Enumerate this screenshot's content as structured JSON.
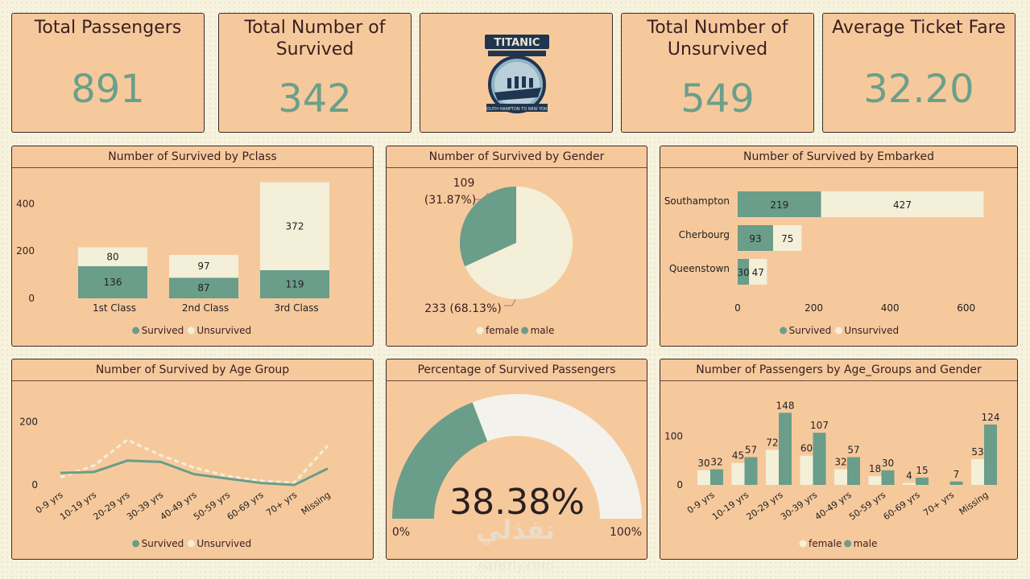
{
  "colors": {
    "survived": "#6a9d8a",
    "unsurvived": "#f4efd8",
    "female": "#f4efd8",
    "male": "#6a9d8a",
    "kpi_value": "#6aa08a",
    "card_bg": "#f6c99d"
  },
  "kpis": {
    "total_passengers": {
      "title": "Total Passengers",
      "value": "891"
    },
    "total_survived": {
      "title": "Total Number of Survived",
      "value": "342"
    },
    "total_unsurvived": {
      "title": "Total Number of Unsurvived",
      "value": "549"
    },
    "avg_fare": {
      "title": "Average Ticket Fare",
      "value": "32.20"
    }
  },
  "logo": {
    "name": "titanic-logo-icon",
    "text": "TITANIC",
    "subtitle": "SOUTH HAMPTON TO NEW YORK"
  },
  "watermark": {
    "text": "نفذلي",
    "sub": "nafezly.com"
  },
  "chart_data": [
    {
      "id": "pclass",
      "type": "bar",
      "stacked": true,
      "title": "Number of Survived by Pclass",
      "categories": [
        "1st Class",
        "2nd Class",
        "3rd Class"
      ],
      "series": [
        {
          "name": "Survived",
          "values": [
            136,
            87,
            119
          ]
        },
        {
          "name": "Unsurvived",
          "values": [
            80,
            97,
            372
          ]
        }
      ],
      "y_ticks": [
        "0",
        "200",
        "400"
      ],
      "ylim": [
        0,
        500
      ],
      "legend": "bottom"
    },
    {
      "id": "gender",
      "type": "pie",
      "title": "Number of Survived by Gender",
      "series": [
        {
          "name": "male",
          "value": 109,
          "label_value": "109",
          "label_pct": "(31.87%)"
        },
        {
          "name": "female",
          "value": 233,
          "label_value": "233 (68.13%)",
          "label_pct": ""
        }
      ],
      "legend": "bottom"
    },
    {
      "id": "embarked",
      "type": "bar",
      "orientation": "horizontal",
      "stacked": true,
      "title": "Number of Survived by Embarked",
      "categories": [
        "Southampton",
        "Cherbourg",
        "Queenstown"
      ],
      "series": [
        {
          "name": "Survived",
          "values": [
            219,
            93,
            30
          ]
        },
        {
          "name": "Unsurvived",
          "values": [
            427,
            75,
            47
          ]
        }
      ],
      "x_ticks": [
        "0",
        "200",
        "400",
        "600"
      ],
      "xlim": [
        0,
        700
      ],
      "legend": "bottom"
    },
    {
      "id": "agegroup",
      "type": "line",
      "title": "Number of Survived by Age Group",
      "categories": [
        "0-9 yrs",
        "10-19 yrs",
        "20-29 yrs",
        "30-39 yrs",
        "40-49 yrs",
        "50-59 yrs",
        "60-69 yrs",
        "70+ yrs",
        "Missing"
      ],
      "series": [
        {
          "name": "Survived",
          "values": [
            38,
            41,
            77,
            73,
            34,
            20,
            6,
            0,
            52
          ]
        },
        {
          "name": "Unsurvived",
          "values": [
            24,
            61,
            143,
            94,
            55,
            28,
            13,
            7,
            125
          ]
        }
      ],
      "y_ticks": [
        "0",
        "200"
      ],
      "ylim": [
        0,
        250
      ],
      "legend": "bottom"
    },
    {
      "id": "gauge",
      "type": "gauge",
      "title": "Percentage of Survived Passengers",
      "value": 38.38,
      "value_label": "38.38%",
      "min_label": "0%",
      "max_label": "100%"
    },
    {
      "id": "agegender",
      "type": "bar",
      "title": "Number of Passengers by Age_Groups and Gender",
      "categories": [
        "0-9 yrs",
        "10-19 yrs",
        "20-29 yrs",
        "30-39 yrs",
        "40-49 yrs",
        "50-59 yrs",
        "60-69 yrs",
        "70+ yrs",
        "Missing"
      ],
      "series": [
        {
          "name": "female",
          "values": [
            30,
            45,
            72,
            60,
            32,
            18,
            4,
            0,
            53
          ],
          "labels": [
            "30",
            "45",
            "72",
            "60",
            "32",
            "18",
            "4",
            "",
            "53"
          ]
        },
        {
          "name": "male",
          "values": [
            32,
            57,
            148,
            107,
            57,
            30,
            15,
            7,
            124
          ],
          "labels": [
            "32",
            "57",
            "148",
            "107",
            "57",
            "30",
            "15",
            "7",
            "124"
          ]
        }
      ],
      "y_ticks": [
        "0",
        "100"
      ],
      "ylim": [
        0,
        170
      ],
      "legend": "bottom"
    }
  ]
}
